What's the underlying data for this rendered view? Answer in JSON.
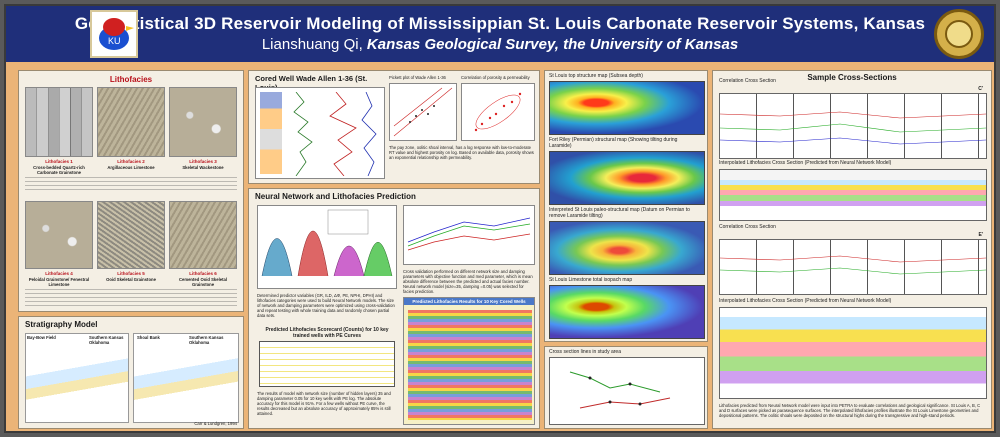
{
  "header": {
    "title": "Geostatistical 3D Reservoir Modeling of Mississippian St. Louis Carbonate Reservoir Systems, Kansas",
    "author": "Lianshuang Qi,",
    "affiliation": "Kansas Geological Survey, the University of Kansas",
    "logo_left_text": "KU"
  },
  "lithofacies": {
    "heading": "Lithofacies",
    "items": [
      {
        "label": "Lithofacies 1",
        "name": "Cross-bedded Quartz-rich Carbonate Grainstone"
      },
      {
        "label": "Lithofacies 2",
        "name": "Argillaceous Limestone"
      },
      {
        "label": "Lithofacies 3",
        "name": "Skeletal Wackestone"
      },
      {
        "label": "Lithofacies 4",
        "name": "Peloidal Grainstone/ Fenestral Limestone"
      },
      {
        "label": "Lithofacies 5",
        "name": "Ooid Skeletal Grainstone"
      },
      {
        "label": "Lithofacies 6",
        "name": "Cemented Ooid Skeletal Grainstone"
      }
    ]
  },
  "stratigraphy": {
    "heading": "Stratigraphy Model",
    "labels": [
      "Bay-Bow Field",
      "Southern Kansas Oklahoma",
      "Southern Kansas Oklahoma",
      "Shoal Bank"
    ],
    "credit": "Carr & Lundgren, 1994"
  },
  "cored_well": {
    "heading": "Cored Well Wade Allen 1-36 (St. Louis)",
    "pickett_title": "Pickett plot of Wade Allen 1-36",
    "correlation_title": "Correlation of porosity & permeability",
    "caption": "The pay zone, oolitic shoal interval, has a log response with low-to-moderate RT value and highest porosity on log. Based on available data, porosity shows an exponential relationship with permeability."
  },
  "nn": {
    "heading": "Neural Network and Lithofacies Prediction",
    "caption1": "Determined predictor variables (GR, ILD, ΔΦ, PE, NPHI, DPHI) and lithofacies categories were used to build Neural Network models. The size of network and damping parameters were optimized using cross-validation and repeat testing with whole training data and randomly chosen partial data sets.",
    "scorecard_title": "Predicted Lithofacies Scorecard (Counts) for 10 key trained wells with PE Curves",
    "caption2": "The results of model with network size (number of hidden layers) 35 and damping parameter 0.05 for 10 key wells with PE log. The absolute accuracy for this model is 91%. For a few wells without PE curve, the results decreased but an absolute accuracy of approximately 85% is still attained.",
    "cv_caption": "Cross validation performed on different network size and damping parameters with objective function and med parameter, which is mean absolute difference between the predicted and actual facies number. Neural network model (size=35, damping =0.05) was selected for facies prediction.",
    "pred_title": "Predicted Lithofacies Results for 10 Key Cored Wells"
  },
  "maps": {
    "m1": "St Louis top structure map (Subsea depth)",
    "m2": "Fort Riley (Permian) structural map (Showing tilting during Laramide)",
    "m3": "Interpreted St Louis paleo-structural map (Datum on Permian to remove Laramide tilting)",
    "m4": "St Louis Limestone total isopach map",
    "m5": "Cross section lines in study area"
  },
  "xsections": {
    "heading": "Sample Cross-Sections",
    "cs1": "Correlation Cross Section",
    "cs2": "Interpolated Lithofacies Cross Section (Predicted from Neural Network Model)",
    "cs3": "Correlation Cross Section",
    "cs4": "Interpolated Lithofacies Cross Section (Predicted from Neural Network Model)",
    "caption": "Lithofacies predicted from Neural Network model were input into PETRA to evaluate correlations and geological significance. St Louis A, B, C and D surfaces were picked as parasequence surfaces. The interpolated lithofacies profiles illustrate the St Louis Limestone geometries and depositional patterns. The oolitic shoals were deposited on the structural highs during the transgressive and high-stand periods.",
    "end_c": "C'",
    "end_e": "E'"
  }
}
